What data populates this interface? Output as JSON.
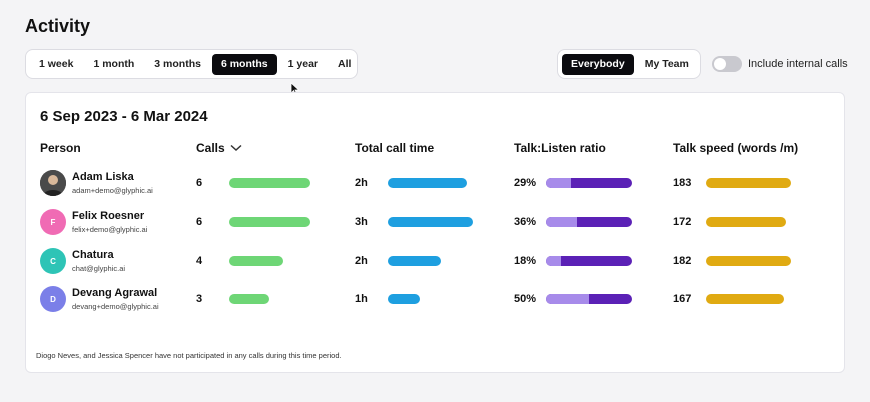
{
  "page_title": "Activity",
  "range_tabs": [
    {
      "label": "1 week",
      "active": false
    },
    {
      "label": "1 month",
      "active": false
    },
    {
      "label": "3 months",
      "active": false
    },
    {
      "label": "6 months",
      "active": true
    },
    {
      "label": "1 year",
      "active": false
    },
    {
      "label": "All",
      "active": false
    }
  ],
  "scope_tabs": [
    {
      "label": "Everybody",
      "active": true
    },
    {
      "label": "My Team",
      "active": false
    }
  ],
  "internal_toggle": {
    "label": "Include internal calls",
    "on": false
  },
  "card": {
    "date_range": "6 Sep 2023 - 6 Mar 2024",
    "columns": {
      "person": "Person",
      "calls": "Calls",
      "total_call_time": "Total call time",
      "talk_listen": "Talk:Listen ratio",
      "talk_speed": "Talk speed (words /m)"
    },
    "rows": [
      {
        "name": "Adam Liska",
        "email": "adam+demo@glyphic.ai",
        "initial": "",
        "avatar_color": "#3a3a3a",
        "calls": "6",
        "calls_value": 6,
        "time": "2h",
        "time_value": 2.0,
        "ratio": "29%",
        "ratio_value": 29,
        "speed": "183",
        "speed_value": 183
      },
      {
        "name": "Felix Roesner",
        "email": "felix+demo@glyphic.ai",
        "initial": "F",
        "avatar_color": "#f06bb4",
        "calls": "6",
        "calls_value": 6,
        "time": "3h",
        "time_value": 2.15,
        "ratio": "36%",
        "ratio_value": 36,
        "speed": "172",
        "speed_value": 172
      },
      {
        "name": "Chatura",
        "email": "chat@glyphic.ai",
        "initial": "C",
        "avatar_color": "#2ec4b6",
        "calls": "4",
        "calls_value": 4,
        "time": "2h",
        "time_value": 1.35,
        "ratio": "18%",
        "ratio_value": 18,
        "speed": "182",
        "speed_value": 182
      },
      {
        "name": "Devang Agrawal",
        "email": "devang+demo@glyphic.ai",
        "initial": "D",
        "avatar_color": "#7b7fe8",
        "calls": "3",
        "calls_value": 3,
        "time": "1h",
        "time_value": 0.8,
        "ratio": "50%",
        "ratio_value": 50,
        "speed": "167",
        "speed_value": 167
      }
    ],
    "footnote": "Diogo Neves, and Jessica Spencer have not participated in any calls during this time period."
  },
  "colors": {
    "calls": "#6ed676",
    "time": "#1e9fe0",
    "ratio_listen": "#5b21b6",
    "ratio_talk": "#a78bea",
    "speed": "#e0aa12",
    "active_tab": "#0b0b0f"
  }
}
